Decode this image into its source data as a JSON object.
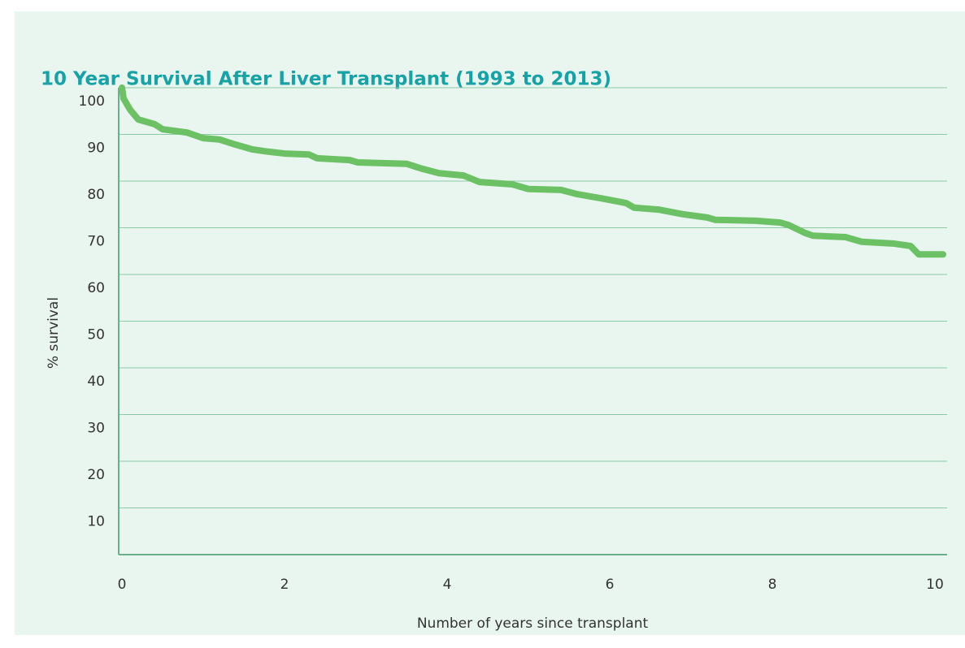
{
  "chart_data": {
    "type": "line",
    "title": "10 Year Survival After Liver Transplant (1993 to 2013)",
    "xlabel": "Number of years since transplant",
    "ylabel": "% survival",
    "xlim": [
      -0.04,
      10.15
    ],
    "ylim": [
      0,
      100
    ],
    "xticks": [
      0,
      2,
      4,
      6,
      8,
      10
    ],
    "yticks": [
      10,
      20,
      30,
      40,
      50,
      60,
      70,
      80,
      90,
      100
    ],
    "grid": true,
    "series": [
      {
        "name": "Survival",
        "color": "#6cc165",
        "x": [
          0,
          0.02,
          0.1,
          0.2,
          0.4,
          0.5,
          0.8,
          1.0,
          1.2,
          1.4,
          1.6,
          1.8,
          2.0,
          2.3,
          2.4,
          2.8,
          2.9,
          3.5,
          3.7,
          3.9,
          4.2,
          4.4,
          4.8,
          5.0,
          5.4,
          5.6,
          5.9,
          6.2,
          6.3,
          6.6,
          6.9,
          7.2,
          7.3,
          7.8,
          8.1,
          8.2,
          8.4,
          8.5,
          8.9,
          9.1,
          9.5,
          9.7,
          9.8,
          10.1
        ],
        "values": [
          100,
          97.7,
          95.3,
          93.2,
          92.2,
          91.1,
          90.4,
          89.2,
          88.9,
          87.8,
          86.8,
          86.3,
          85.9,
          85.7,
          84.9,
          84.5,
          84.0,
          83.7,
          82.6,
          81.7,
          81.2,
          79.8,
          79.3,
          78.3,
          78.1,
          77.2,
          76.3,
          75.3,
          74.3,
          73.9,
          72.9,
          72.2,
          71.7,
          71.5,
          71.1,
          70.6,
          68.9,
          68.3,
          68.0,
          67.0,
          66.6,
          66.1,
          64.3,
          64.3
        ]
      }
    ]
  }
}
